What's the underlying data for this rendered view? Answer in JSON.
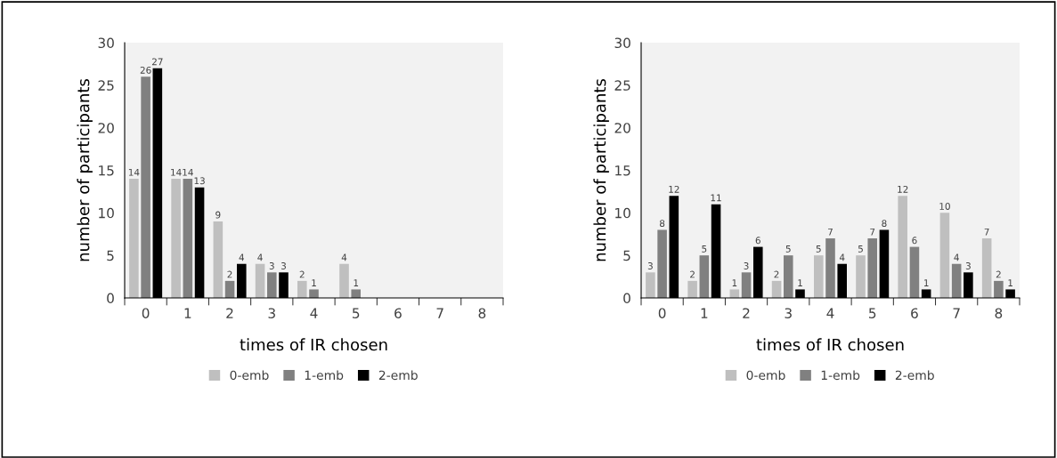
{
  "chart_data": [
    {
      "type": "bar",
      "categories": [
        "0",
        "1",
        "2",
        "3",
        "4",
        "5",
        "6",
        "7",
        "8"
      ],
      "xlabel": "times of IR chosen",
      "ylabel": "number of participants",
      "ylim": [
        0,
        30
      ],
      "yticks": [
        0,
        5,
        10,
        15,
        20,
        25,
        30
      ],
      "grid": false,
      "legend": "bottom",
      "data_labels": true,
      "series": [
        {
          "name": "0-emb",
          "color": "#bfbfbf",
          "values": [
            14,
            14,
            9,
            4,
            2,
            4,
            null,
            null,
            null
          ]
        },
        {
          "name": "1-emb",
          "color": "#808080",
          "values": [
            26,
            14,
            2,
            3,
            1,
            1,
            null,
            null,
            null
          ]
        },
        {
          "name": "2-emb",
          "color": "#000000",
          "values": [
            27,
            13,
            4,
            3,
            null,
            null,
            null,
            null,
            null
          ]
        }
      ]
    },
    {
      "type": "bar",
      "categories": [
        "0",
        "1",
        "2",
        "3",
        "4",
        "5",
        "6",
        "7",
        "8"
      ],
      "xlabel": "times of IR chosen",
      "ylabel": "number of participants",
      "ylim": [
        0,
        30
      ],
      "yticks": [
        0,
        5,
        10,
        15,
        20,
        25,
        30
      ],
      "grid": false,
      "legend": "bottom",
      "data_labels": true,
      "series": [
        {
          "name": "0-emb",
          "color": "#bfbfbf",
          "values": [
            3,
            2,
            1,
            2,
            5,
            5,
            12,
            10,
            7
          ]
        },
        {
          "name": "1-emb",
          "color": "#808080",
          "values": [
            8,
            5,
            3,
            5,
            7,
            7,
            6,
            4,
            2
          ]
        },
        {
          "name": "2-emb",
          "color": "#000000",
          "values": [
            12,
            11,
            6,
            1,
            4,
            8,
            1,
            3,
            1
          ]
        }
      ]
    }
  ]
}
